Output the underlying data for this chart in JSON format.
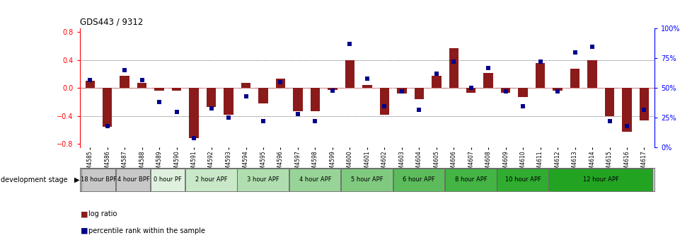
{
  "title": "GDS443 / 9312",
  "samples": [
    "GSM4585",
    "GSM4586",
    "GSM4587",
    "GSM4588",
    "GSM4589",
    "GSM4590",
    "GSM4591",
    "GSM4592",
    "GSM4593",
    "GSM4594",
    "GSM4595",
    "GSM4596",
    "GSM4597",
    "GSM4598",
    "GSM4599",
    "GSM4600",
    "GSM4601",
    "GSM4602",
    "GSM4603",
    "GSM4604",
    "GSM4605",
    "GSM4606",
    "GSM4607",
    "GSM4608",
    "GSM4609",
    "GSM4610",
    "GSM4611",
    "GSM4612",
    "GSM4613",
    "GSM4614",
    "GSM4615",
    "GSM4616",
    "GSM4617"
  ],
  "log_ratio": [
    0.1,
    -0.55,
    0.18,
    0.07,
    -0.04,
    -0.04,
    -0.72,
    -0.27,
    -0.38,
    0.07,
    -0.22,
    0.13,
    -0.33,
    -0.33,
    -0.03,
    0.4,
    0.04,
    -0.38,
    -0.08,
    -0.16,
    0.18,
    0.57,
    -0.07,
    0.22,
    -0.07,
    -0.13,
    0.36,
    -0.04,
    0.28,
    0.4,
    -0.4,
    -0.62,
    -0.46
  ],
  "percentile": [
    57,
    18,
    65,
    57,
    38,
    30,
    8,
    33,
    25,
    43,
    22,
    55,
    28,
    22,
    48,
    87,
    58,
    35,
    47,
    32,
    62,
    72,
    50,
    67,
    47,
    35,
    72,
    47,
    80,
    85,
    22,
    18,
    32
  ],
  "stages": [
    {
      "label": "18 hour BPF",
      "start": 0,
      "end": 2,
      "color": "#c8c8c8"
    },
    {
      "label": "4 hour BPF",
      "start": 2,
      "end": 4,
      "color": "#c8c8c8"
    },
    {
      "label": "0 hour PF",
      "start": 4,
      "end": 6,
      "color": "#dff0df"
    },
    {
      "label": "2 hour APF",
      "start": 6,
      "end": 9,
      "color": "#c8e8c8"
    },
    {
      "label": "3 hour APF",
      "start": 9,
      "end": 12,
      "color": "#b0deb0"
    },
    {
      "label": "4 hour APF",
      "start": 12,
      "end": 15,
      "color": "#98d498"
    },
    {
      "label": "5 hour APF",
      "start": 15,
      "end": 18,
      "color": "#80ca80"
    },
    {
      "label": "6 hour APF",
      "start": 18,
      "end": 21,
      "color": "#5cbc5c"
    },
    {
      "label": "8 hour APF",
      "start": 21,
      "end": 24,
      "color": "#44b444"
    },
    {
      "label": "10 hour APF",
      "start": 24,
      "end": 27,
      "color": "#30ac30"
    },
    {
      "label": "12 hour APF",
      "start": 27,
      "end": 33,
      "color": "#22a422"
    }
  ],
  "ylim": [
    -0.85,
    0.85
  ],
  "yticks": [
    -0.8,
    -0.4,
    0.0,
    0.4,
    0.8
  ],
  "bar_color": "#8B1A1A",
  "dot_color": "#00008B",
  "background_color": "#ffffff",
  "right_yticks": [
    0,
    25,
    50,
    75,
    100
  ],
  "right_ylabels": [
    "0%",
    "25%",
    "50%",
    "75%",
    "100%"
  ]
}
